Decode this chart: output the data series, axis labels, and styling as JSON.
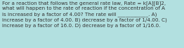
{
  "background_color": "#b2e0e0",
  "text": "For a reaction that follows the general rate law, Rate = k[A][B]2,\nwhat will happen to the rate of reaction if the concentration of A\nis increased by a factor of 4.00? The rate will ____________. A)\nincrease by a factor of 4.00. B) decrease by a factor of 1/4.00. C)\nincrease by a factor of 16.0. D) decrease by a factor of 1/16.0.",
  "font_size": 5.2,
  "text_color": "#333333",
  "fig_width": 2.62,
  "fig_height": 0.69,
  "dpi": 100
}
